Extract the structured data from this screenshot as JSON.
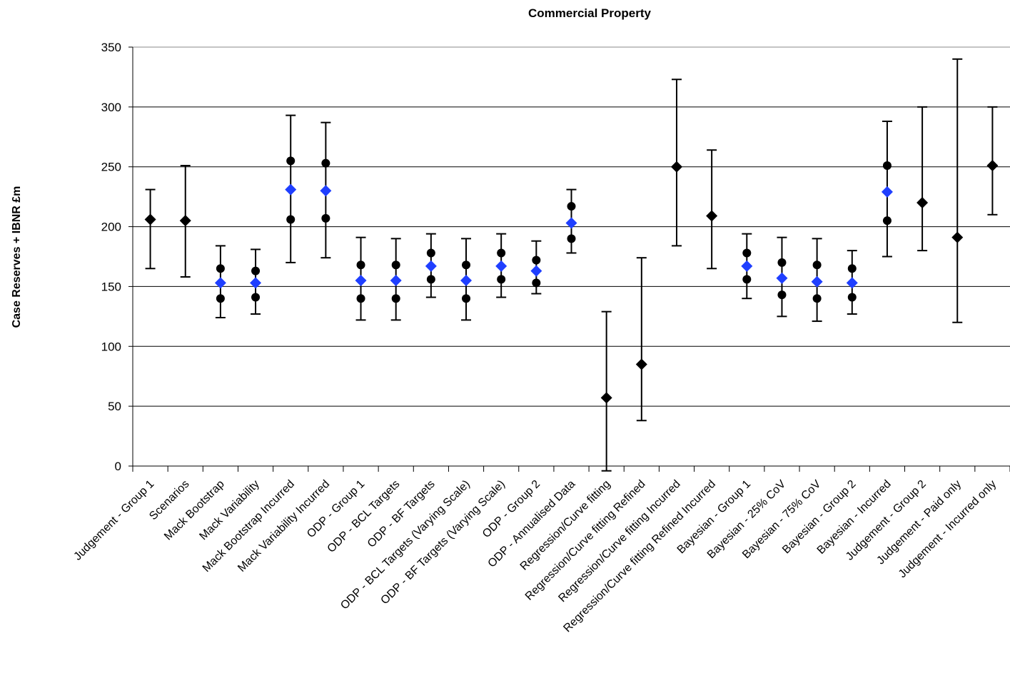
{
  "chart_data": {
    "type": "errorbar",
    "title": "Commercial Property",
    "y_label": "Case Reserves + IBNR £m",
    "categories": [
      "Judgement - Group 1",
      "Scenarios",
      "Mack Bootstrap",
      "Mack Variability",
      "Mack Bootstrap Incurred",
      "Mack Variability Incurred",
      "ODP - Group 1",
      "ODP - BCL Targets",
      "ODP - BF Targets",
      "ODP - BCL Targets (Varying Scale)",
      "ODP - BF Targets (Varying Scale)",
      "ODP - Group 2",
      "ODP - Annualised Data",
      "Regression/Curve fitting",
      "Regression/Curve fitting Refined",
      "Regression/Curve fitting Incurred",
      "Regression/Curve fitting Refined Incurred",
      "Bayesian - Group 1",
      "Bayesian - 25% CoV",
      "Bayesian - 75% CoV",
      "Bayesian - Group 2",
      "Bayesian - Incurred",
      "Judgement - Group 2",
      "Judgement - Paid only",
      "Judgement - Incurred only"
    ],
    "mean": [
      206,
      205,
      153,
      153,
      231,
      230,
      155,
      155,
      167,
      155,
      167,
      163,
      203,
      57,
      85,
      250,
      209,
      167,
      157,
      154,
      153,
      229,
      220,
      191,
      251
    ],
    "low": [
      165,
      158,
      124,
      127,
      170,
      174,
      122,
      122,
      141,
      122,
      141,
      144,
      178,
      -4,
      38,
      184,
      165,
      140,
      125,
      121,
      127,
      175,
      180,
      120,
      210
    ],
    "high": [
      231,
      251,
      184,
      181,
      293,
      287,
      191,
      190,
      194,
      190,
      194,
      188,
      231,
      129,
      174,
      323,
      264,
      194,
      191,
      190,
      180,
      288,
      300,
      340,
      300
    ],
    "lower": [
      null,
      null,
      140,
      141,
      206,
      207,
      140,
      140,
      156,
      140,
      156,
      153,
      190,
      null,
      null,
      null,
      null,
      156,
      143,
      140,
      141,
      205,
      null,
      null,
      null
    ],
    "upper": [
      null,
      null,
      165,
      163,
      255,
      253,
      168,
      168,
      178,
      168,
      178,
      172,
      217,
      null,
      null,
      null,
      null,
      178,
      170,
      168,
      165,
      251,
      null,
      null,
      null
    ],
    "mean_colors": [
      "#000000",
      "#000000",
      "#1f3fff",
      "#1f3fff",
      "#1f3fff",
      "#1f3fff",
      "#1f3fff",
      "#1f3fff",
      "#1f3fff",
      "#1f3fff",
      "#1f3fff",
      "#1f3fff",
      "#1f3fff",
      "#000000",
      "#000000",
      "#000000",
      "#000000",
      "#1f3fff",
      "#1f3fff",
      "#1f3fff",
      "#1f3fff",
      "#1f3fff",
      "#000000",
      "#000000",
      "#000000"
    ],
    "point_color": "#000000",
    "ylim": [
      0,
      350
    ],
    "yticks": [
      0,
      50,
      100,
      150,
      200,
      250,
      300,
      350
    ],
    "grid": true
  }
}
